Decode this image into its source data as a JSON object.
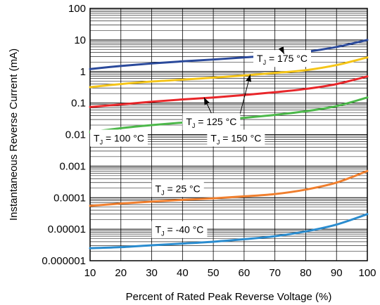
{
  "chart_data": {
    "type": "line",
    "title": "",
    "xlabel": "Percent of Rated Peak Reverse Voltage (%)",
    "ylabel": "Instantaneous Reverse Current (mA)",
    "xlim": [
      10,
      100
    ],
    "ylim": [
      1e-06,
      100
    ],
    "yscale": "log",
    "grid": true,
    "x_ticks": [
      10,
      20,
      30,
      40,
      50,
      60,
      70,
      80,
      90,
      100
    ],
    "x_tick_labels": [
      "10",
      "20",
      "30",
      "40",
      "50",
      "60",
      "70",
      "80",
      "90",
      "100"
    ],
    "y_ticks": [
      1e-06,
      1e-05,
      0.0001,
      0.001,
      0.01,
      0.1,
      1,
      10,
      100
    ],
    "y_tick_labels": [
      "0.000001",
      "0.00001",
      "0.0001",
      "0.001",
      "0.01",
      "0.1",
      "1",
      "10",
      "100"
    ],
    "series": [
      {
        "color": "#2b4a9b",
        "x": [
          10,
          20,
          30,
          40,
          50,
          60,
          70,
          80,
          90,
          100
        ],
        "y": [
          1.2,
          1.5,
          1.8,
          2.1,
          2.4,
          2.8,
          3.3,
          4.2,
          6.0,
          10.0
        ]
      },
      {
        "color": "#f5c518",
        "x": [
          10,
          20,
          30,
          40,
          50,
          60,
          70,
          80,
          90,
          100
        ],
        "y": [
          0.32,
          0.4,
          0.48,
          0.55,
          0.64,
          0.75,
          0.9,
          1.1,
          1.6,
          2.8
        ]
      },
      {
        "color": "#e8262a",
        "x": [
          10,
          20,
          30,
          40,
          50,
          60,
          70,
          80,
          90,
          100
        ],
        "y": [
          0.075,
          0.09,
          0.11,
          0.13,
          0.15,
          0.18,
          0.22,
          0.28,
          0.4,
          0.7
        ]
      },
      {
        "color": "#4cb84a",
        "x": [
          10,
          20,
          30,
          40,
          50,
          60,
          70,
          80,
          90,
          100
        ],
        "y": [
          0.012,
          0.016,
          0.02,
          0.024,
          0.028,
          0.034,
          0.042,
          0.055,
          0.08,
          0.15
        ]
      },
      {
        "color": "#f07f2e",
        "x": [
          10,
          20,
          30,
          40,
          50,
          60,
          70,
          80,
          90,
          100
        ],
        "y": [
          5.5e-05,
          6.5e-05,
          7.5e-05,
          8.5e-05,
          9.5e-05,
          0.00011,
          0.00013,
          0.00018,
          0.0003,
          0.0007
        ]
      },
      {
        "color": "#2a8ccf",
        "x": [
          10,
          20,
          30,
          40,
          50,
          60,
          70,
          80,
          90,
          100
        ],
        "y": [
          2.5e-06,
          2.7e-06,
          3.1e-06,
          3.5e-06,
          4e-06,
          4.8e-06,
          6e-06,
          8.5e-06,
          1.4e-05,
          3e-05
        ]
      }
    ],
    "annotations": [
      {
        "main": "T",
        "sub": "J",
        "value": " = 175 °C",
        "box_x": 63,
        "box_y": 2.0,
        "arrow_to": [
          73,
          3.6
        ]
      },
      {
        "main": "T",
        "sub": "J",
        "value": " = 150 °C",
        "box_x": 48,
        "box_y": 0.006,
        "arrow_to": [
          62,
          0.8
        ]
      },
      {
        "main": "T",
        "sub": "J",
        "value": " = 125 °C",
        "box_x": 40,
        "box_y": 0.02,
        "arrow_to": [
          47,
          0.15
        ]
      },
      {
        "main": "T",
        "sub": "J",
        "value": " = 100 °C",
        "box_x": 10,
        "box_y": 0.006,
        "arrow_to": null
      },
      {
        "main": "T",
        "sub": "J",
        "value": " = 25 °C",
        "box_x": 30,
        "box_y": 0.00015,
        "arrow_to": null
      },
      {
        "main": "T",
        "sub": "J",
        "value": " = -40 °C",
        "box_x": 30,
        "box_y": 7.5e-06,
        "arrow_to": null
      }
    ]
  }
}
